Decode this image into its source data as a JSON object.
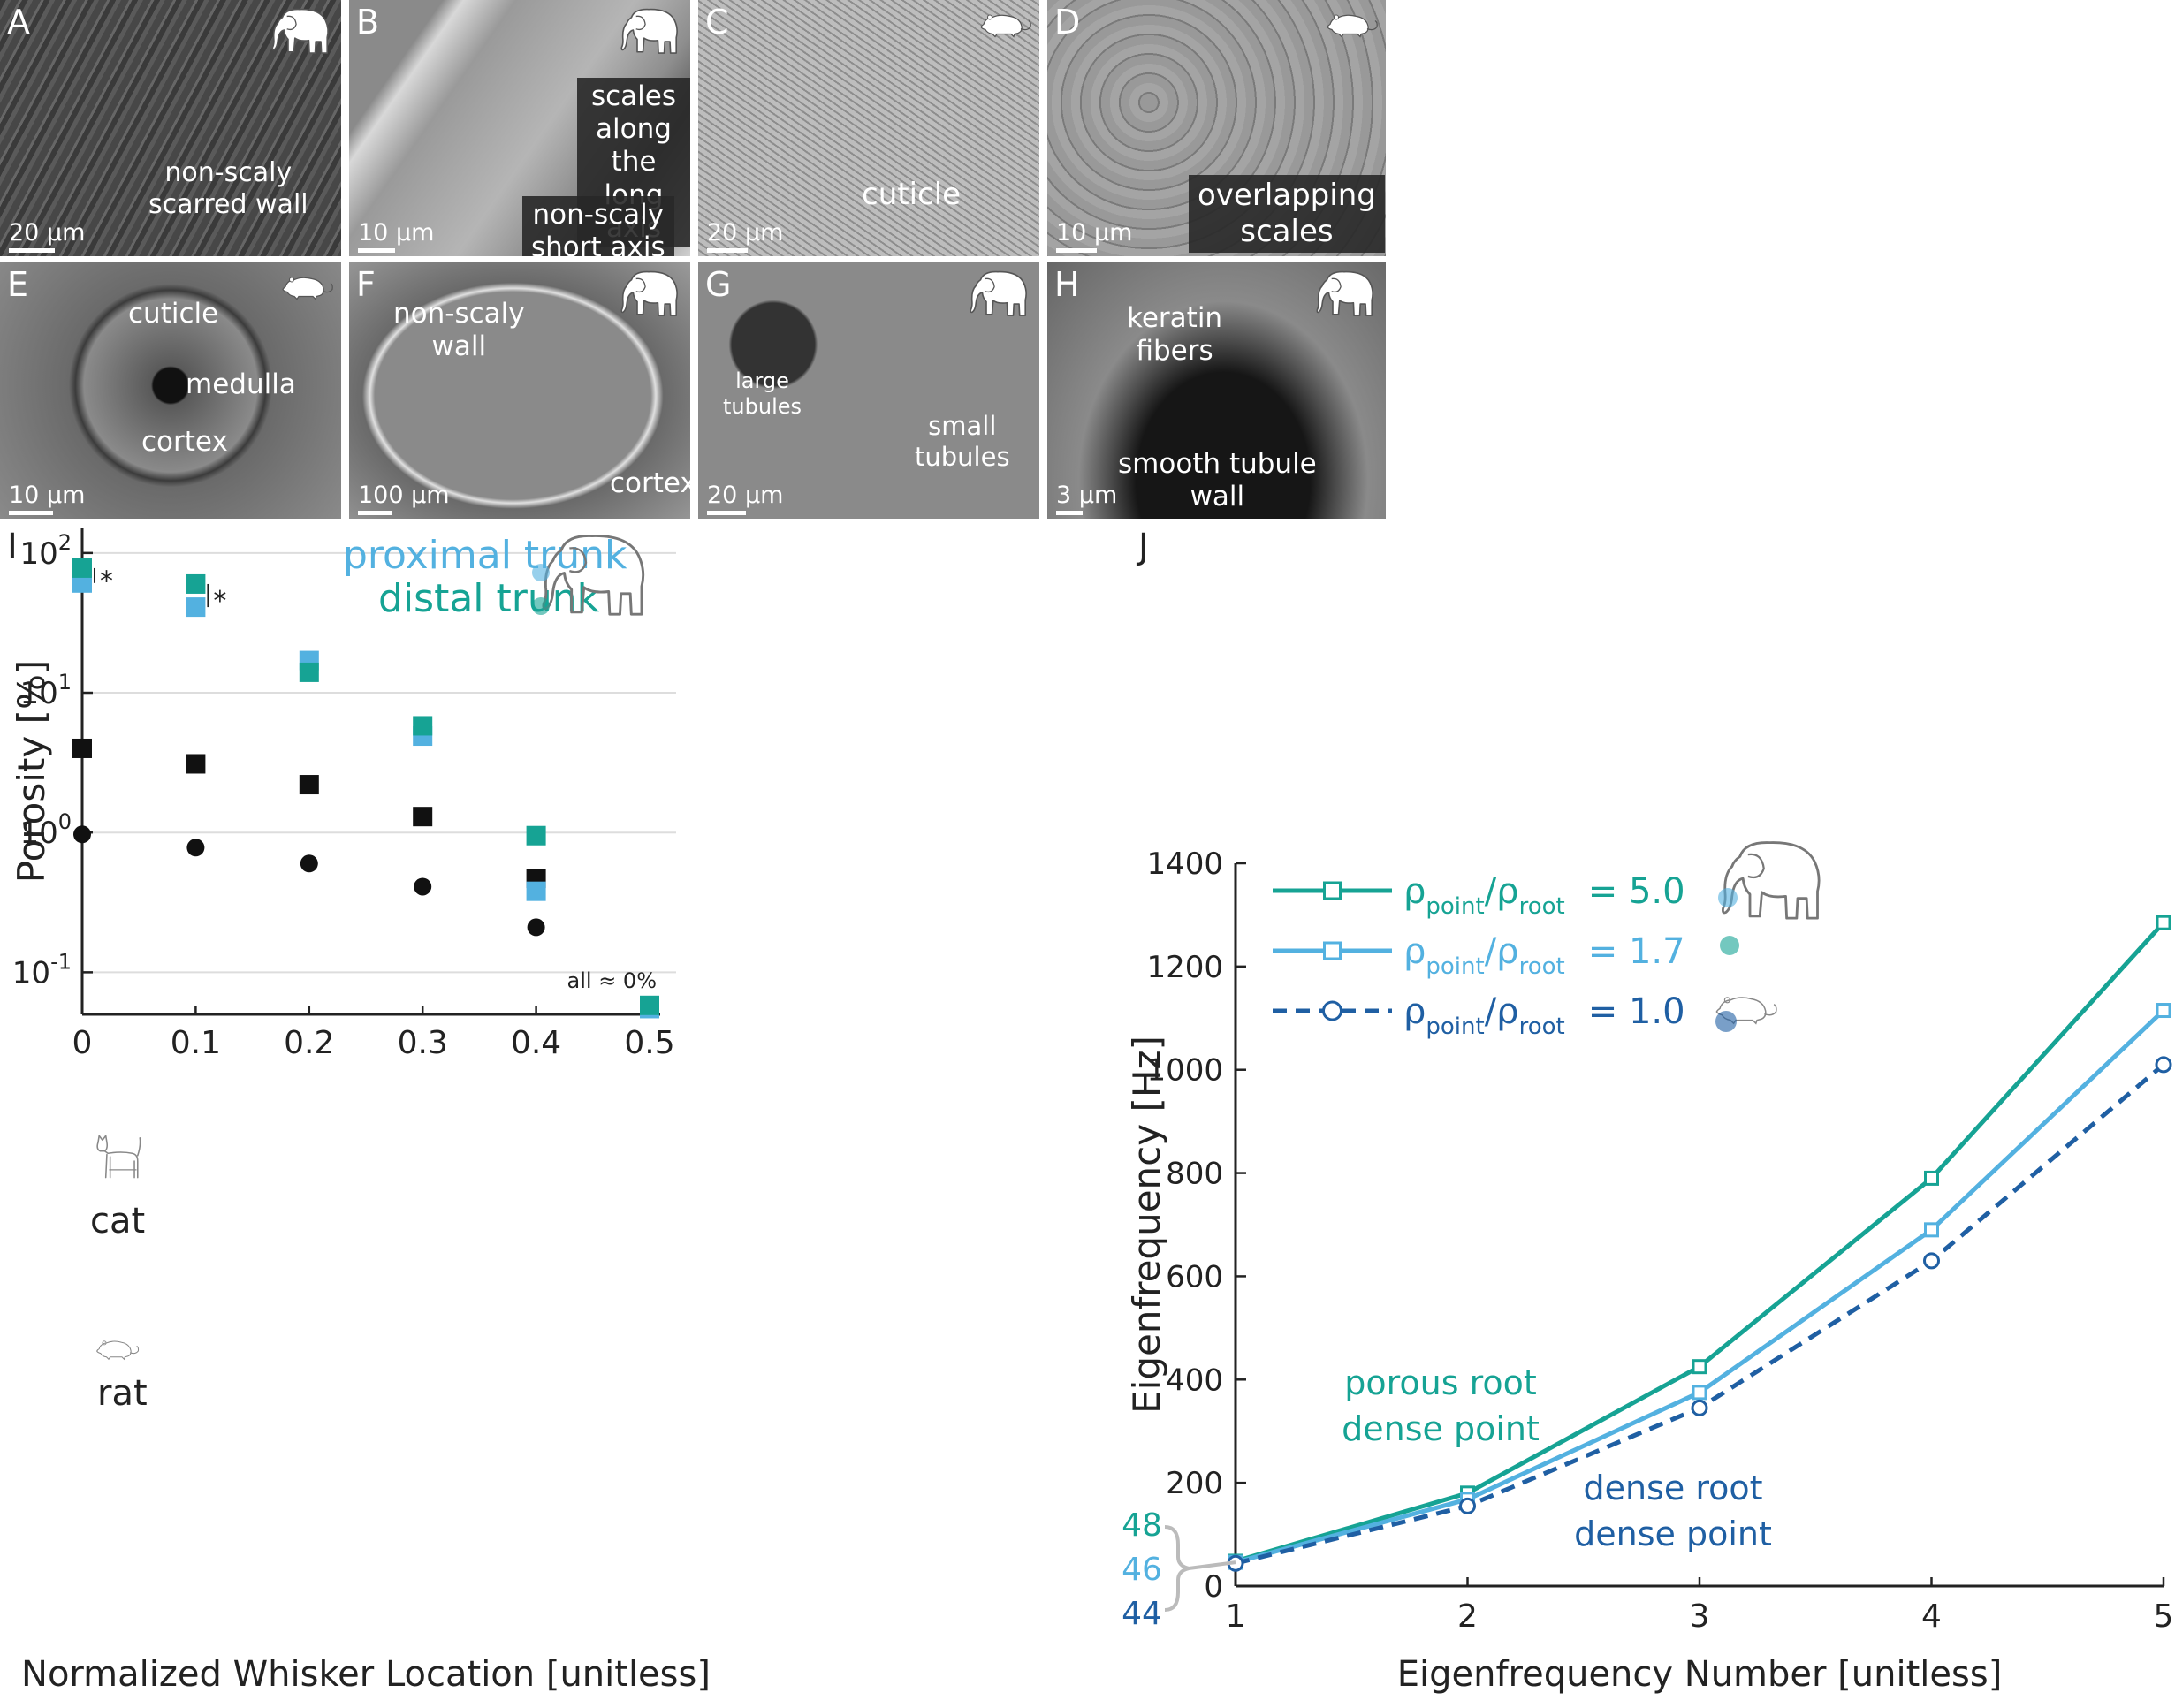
{
  "panels": [
    {
      "letter": "A",
      "scale": "20 μm",
      "animal": "elephant",
      "labels": [
        "non-scaly\nscarred wall"
      ]
    },
    {
      "letter": "B",
      "scale": "10 μm",
      "animal": "elephant",
      "labels": [
        "scales along\nthe long axis",
        "non-scaly\nshort axis"
      ]
    },
    {
      "letter": "C",
      "scale": "20 μm",
      "animal": "rat",
      "labels": [
        "cuticle"
      ]
    },
    {
      "letter": "D",
      "scale": "10 μm",
      "animal": "rat",
      "labels": [
        "overlapping\nscales"
      ]
    },
    {
      "letter": "E",
      "scale": "10 μm",
      "animal": "rat",
      "labels": [
        "cuticle",
        "medulla",
        "cortex"
      ]
    },
    {
      "letter": "F",
      "scale": "100 μm",
      "animal": "elephant",
      "labels": [
        "non-scaly\nwall",
        "cortex"
      ]
    },
    {
      "letter": "G",
      "scale": "20 μm",
      "animal": "elephant",
      "labels": [
        "large\ntubules",
        "small\ntubules"
      ]
    },
    {
      "letter": "H",
      "scale": "3 μm",
      "animal": "elephant",
      "labels": [
        "keratin\nfibers",
        "smooth tubule\nwall"
      ]
    }
  ],
  "colors": {
    "distal": "#16a394",
    "proximal": "#53b1e0",
    "ratline": "#1f5fa3",
    "black": "#111111",
    "grid": "#dddddd"
  },
  "chart_data": [
    {
      "panel": "I",
      "type": "scatter",
      "xlabel": "Normalized Whisker Location [unitless]",
      "ylabel": "Porosity [%]",
      "yscale": "log",
      "xlim": [
        0,
        0.5
      ],
      "ylim": [
        0.05,
        150
      ],
      "xticks": [
        "0",
        "0.1",
        "0.2",
        "0.3",
        "0.4",
        "0.5"
      ],
      "yticks": [
        {
          "base": "10",
          "exp": "2"
        },
        {
          "base": "10",
          "exp": "1"
        },
        {
          "base": "10",
          "exp": "0"
        },
        {
          "base": "10",
          "exp": "-1"
        }
      ],
      "grid": "horizontal",
      "series": [
        {
          "name": "distal trunk",
          "color": "#16a394",
          "marker": "square",
          "x": [
            0,
            0.1,
            0.2,
            0.3,
            0.4,
            0.5
          ],
          "y": [
            78,
            60,
            14,
            5.8,
            0.95,
            0.058
          ]
        },
        {
          "name": "proximal trunk",
          "color": "#53b1e0",
          "marker": "square",
          "x": [
            0,
            0.1,
            0.2,
            0.3,
            0.4,
            0.5
          ],
          "y": [
            61,
            41,
            17,
            4.9,
            0.38,
            0.055
          ]
        },
        {
          "name": "cat",
          "color": "#111111",
          "marker": "square",
          "x": [
            0,
            0.1,
            0.2,
            0.3,
            0.4
          ],
          "y": [
            4.0,
            3.1,
            2.2,
            1.3,
            0.47
          ]
        },
        {
          "name": "rat",
          "color": "#111111",
          "marker": "circle",
          "x": [
            0,
            0.1,
            0.2,
            0.3,
            0.4
          ],
          "y": [
            0.97,
            0.78,
            0.6,
            0.41,
            0.21
          ]
        }
      ],
      "annotations": {
        "star": "*",
        "all_zero": "all ≈ 0%",
        "cat": "cat",
        "rat": "rat",
        "proximal": "proximal trunk",
        "distal": "distal trunk"
      }
    },
    {
      "panel": "J",
      "type": "line",
      "xlabel": "Eigenfrequency Number [unitless]",
      "ylabel": "Eigenfrequency [Hz]",
      "xlim": [
        1,
        5
      ],
      "ylim": [
        0,
        1400
      ],
      "xticks": [
        "1",
        "2",
        "3",
        "4",
        "5"
      ],
      "yticks": [
        "0",
        "200",
        "400",
        "600",
        "800",
        "1000",
        "1200",
        "1400"
      ],
      "series": [
        {
          "ratio": "5.0",
          "color": "#16a394",
          "marker": "square",
          "dash": false,
          "x": [
            1,
            2,
            3,
            4,
            5
          ],
          "y": [
            48,
            180,
            425,
            790,
            1285
          ]
        },
        {
          "ratio": "1.7",
          "color": "#53b1e0",
          "marker": "square",
          "dash": false,
          "x": [
            1,
            2,
            3,
            4,
            5
          ],
          "y": [
            46,
            168,
            375,
            690,
            1115
          ]
        },
        {
          "ratio": "1.0",
          "color": "#1f5fa3",
          "marker": "circle",
          "dash": true,
          "x": [
            1,
            2,
            3,
            4,
            5
          ],
          "y": [
            44,
            155,
            345,
            630,
            1010
          ]
        }
      ],
      "legend_prefix": {
        "rho": "ρ",
        "point": "point",
        "root": "root",
        "eq": "="
      },
      "low_values": [
        "48",
        "46",
        "44"
      ],
      "annotations": {
        "porous": "porous root\ndense point",
        "dense": "dense root\ndense point"
      }
    }
  ]
}
